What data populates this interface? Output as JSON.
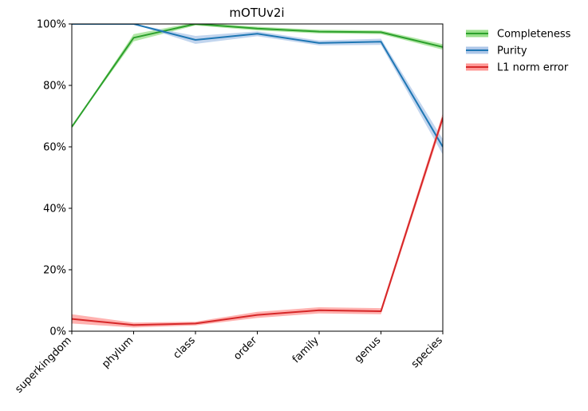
{
  "chart_data": {
    "type": "line",
    "title": "mOTUv2i",
    "xlabel": "",
    "ylabel": "",
    "categories": [
      "superkingdom",
      "phylum",
      "class",
      "order",
      "family",
      "genus",
      "species"
    ],
    "ylim": [
      0,
      100
    ],
    "yticks": [
      "0%",
      "20%",
      "40%",
      "60%",
      "80%",
      "100%"
    ],
    "legend_position": "outside-top-right",
    "series": [
      {
        "name": "Completeness",
        "color": "#2ca02c",
        "band_color": "#98df8a",
        "values": [
          66.5,
          95.5,
          100.0,
          98.5,
          97.5,
          97.3,
          92.5
        ],
        "band": [
          0,
          1.2,
          0.5,
          0.6,
          0.6,
          0.6,
          0.9
        ]
      },
      {
        "name": "Purity",
        "color": "#1f77b4",
        "band_color": "#aec7e8",
        "values": [
          100.0,
          100.0,
          94.8,
          96.8,
          93.8,
          94.2,
          60.0
        ],
        "band": [
          0,
          0,
          1.3,
          0.8,
          0.8,
          1.0,
          2.5
        ]
      },
      {
        "name": "L1 norm error",
        "color": "#d62728",
        "band_color": "#ff9896",
        "values": [
          4.0,
          2.0,
          2.5,
          5.3,
          6.8,
          6.5,
          69.5
        ],
        "band": [
          1.5,
          0.8,
          0.6,
          1.0,
          1.0,
          1.0,
          1.5
        ]
      }
    ]
  }
}
